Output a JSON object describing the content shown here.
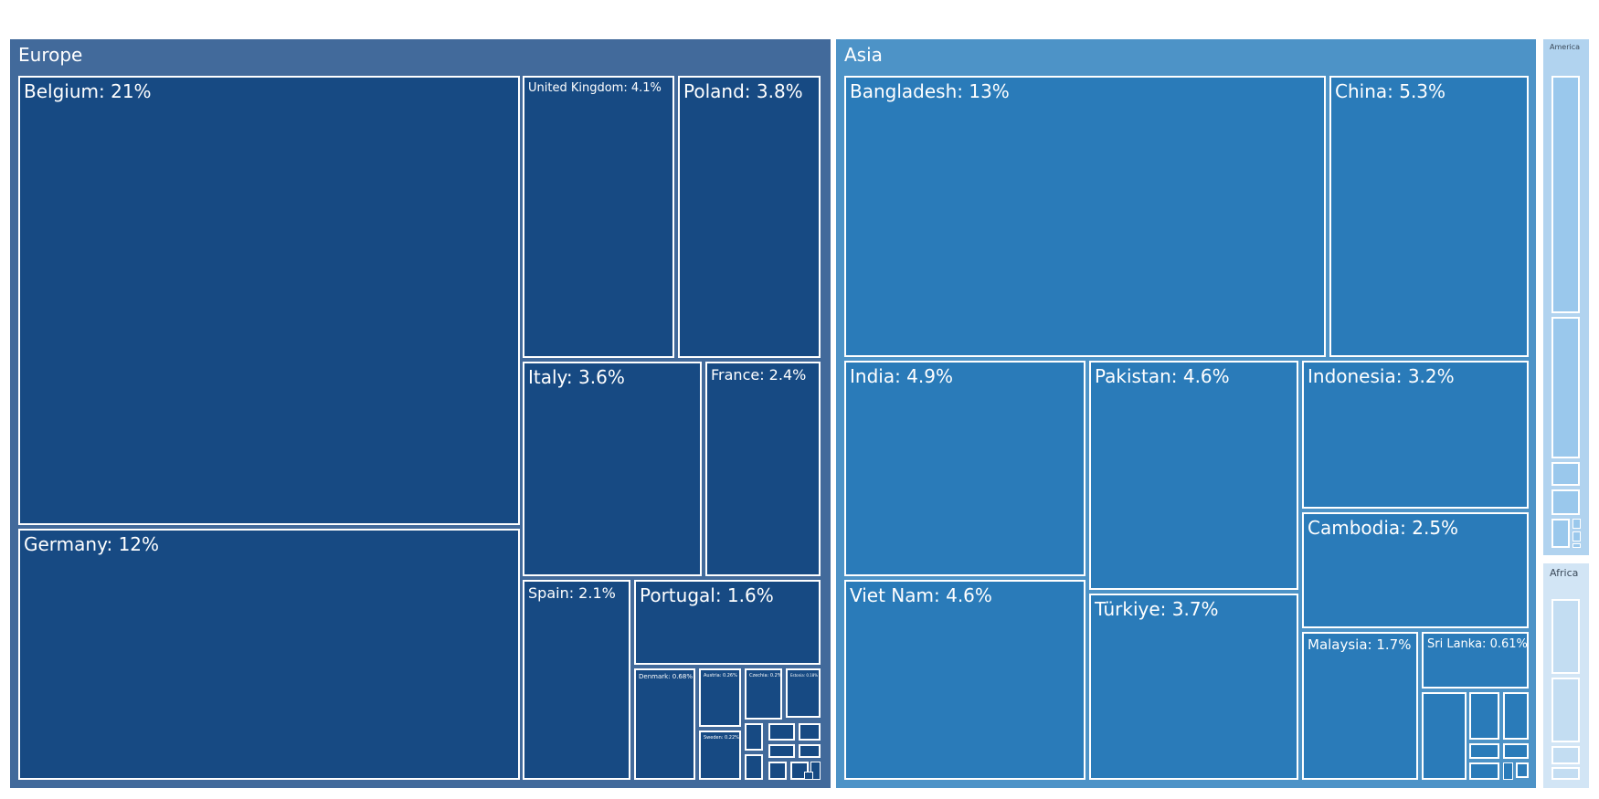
{
  "chart_data": {
    "type": "treemap",
    "title": "",
    "regions": [
      {
        "name": "Europe",
        "color": "#426a9b",
        "cell_color": "#174a83",
        "children": [
          {
            "label": "Belgium: 21%",
            "value": 21
          },
          {
            "label": "Germany: 12%",
            "value": 12
          },
          {
            "label": "United Kingdom: 4.1%",
            "value": 4.1
          },
          {
            "label": "Poland: 3.8%",
            "value": 3.8
          },
          {
            "label": "Italy: 3.6%",
            "value": 3.6
          },
          {
            "label": "France: 2.4%",
            "value": 2.4
          },
          {
            "label": "Spain: 2.1%",
            "value": 2.1
          },
          {
            "label": "Portugal: 1.6%",
            "value": 1.6
          },
          {
            "label": "Denmark: 0.68%",
            "value": 0.68
          },
          {
            "label": "Austria: 0.26%",
            "value": 0.26
          },
          {
            "label": "Czechia: 0.2%",
            "value": 0.2
          },
          {
            "label": "Estonia: 0.18%",
            "value": 0.18
          },
          {
            "label": "Sweden: 0.22%",
            "value": 0.22
          }
        ]
      },
      {
        "name": "Asia",
        "color": "#4d93c7",
        "cell_color": "#2a7bb9",
        "children": [
          {
            "label": "Bangladesh: 13%",
            "value": 13
          },
          {
            "label": "China: 5.3%",
            "value": 5.3
          },
          {
            "label": "India: 4.9%",
            "value": 4.9
          },
          {
            "label": "Pakistan: 4.6%",
            "value": 4.6
          },
          {
            "label": "Indonesia: 3.2%",
            "value": 3.2
          },
          {
            "label": "Cambodia: 2.5%",
            "value": 2.5
          },
          {
            "label": "Viet Nam: 4.6%",
            "value": 4.6
          },
          {
            "label": "Türkiye: 3.7%",
            "value": 3.7
          },
          {
            "label": "Malaysia: 1.7%",
            "value": 1.7
          },
          {
            "label": "Sri Lanka: 0.61%",
            "value": 0.61
          }
        ]
      },
      {
        "name": "America",
        "color": "#b1d3ef",
        "cell_color": "#9ac8ec",
        "children": []
      },
      {
        "name": "Africa",
        "color": "#d2e5f5",
        "cell_color": "#c3ddf2",
        "children": []
      }
    ]
  }
}
